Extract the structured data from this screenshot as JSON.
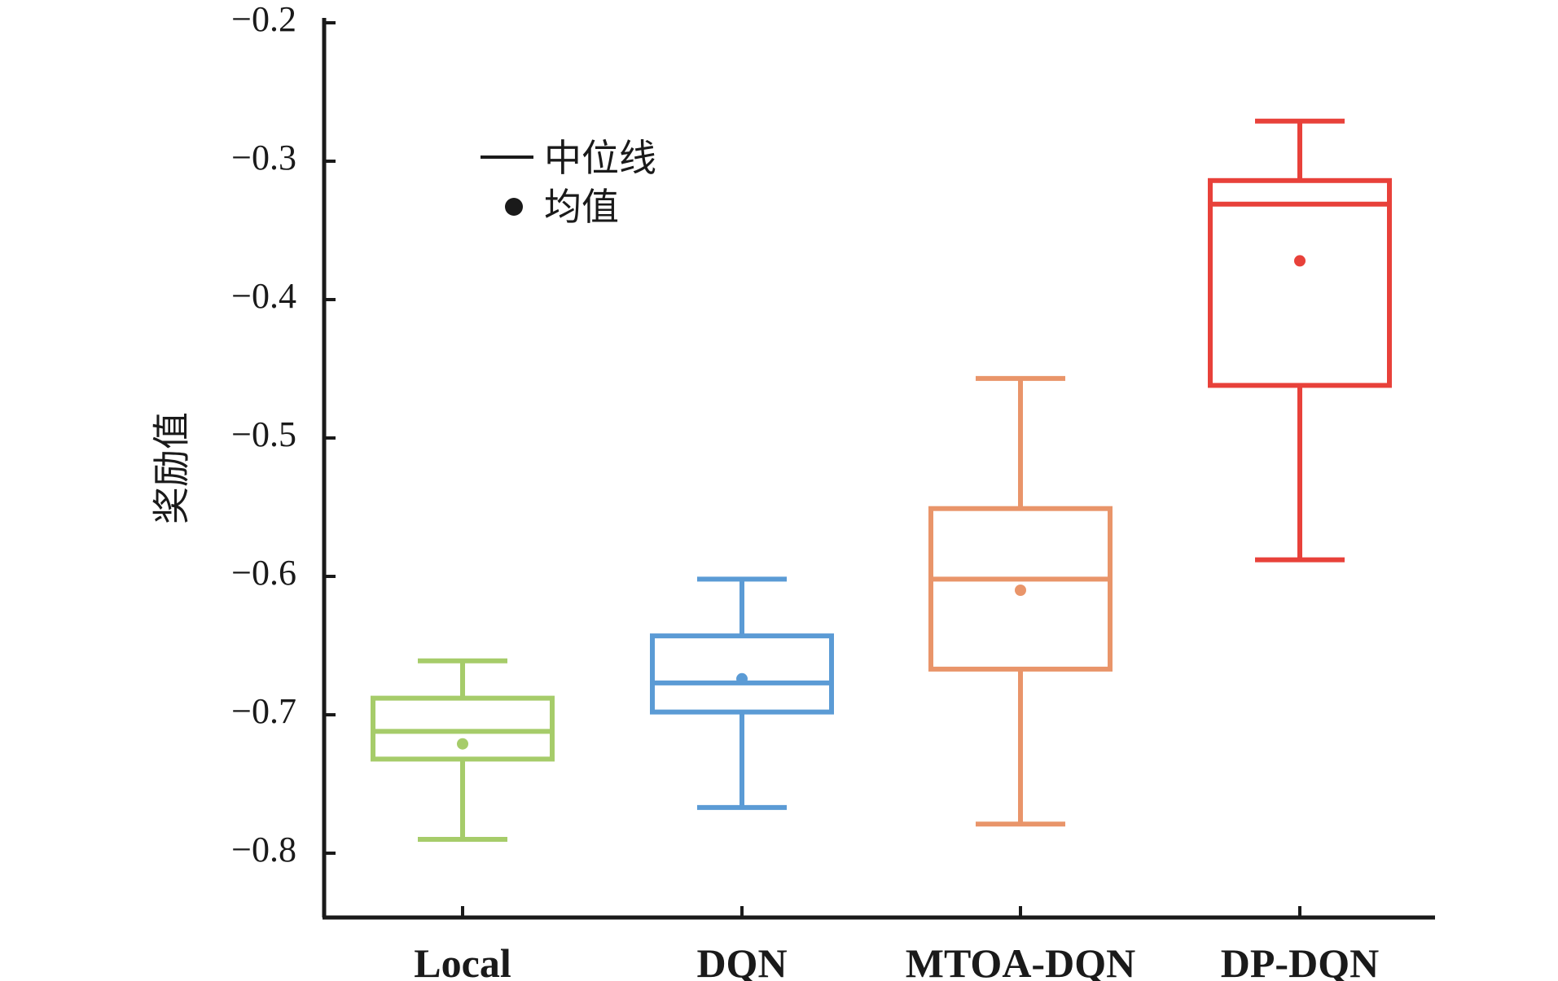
{
  "chart_data": {
    "type": "box",
    "title": "",
    "xlabel": "",
    "ylabel": "奖励值",
    "ylim": [
      -0.85,
      -0.2
    ],
    "yticks": [
      -0.2,
      -0.3,
      -0.4,
      -0.5,
      -0.6,
      -0.7,
      -0.8
    ],
    "ytick_labels": [
      "−0.2",
      "−0.3",
      "−0.4",
      "−0.5",
      "−0.6",
      "−0.7",
      "−0.8"
    ],
    "grid": false,
    "legend": {
      "placement": "top-left",
      "entries": [
        {
          "symbol": "line",
          "label": "中位线"
        },
        {
          "symbol": "dot",
          "label": "均值"
        }
      ]
    },
    "categories": [
      "Local",
      "DQN",
      "MTOA-DQN",
      "DP-DQN"
    ],
    "boxes": [
      {
        "category": "Local",
        "color": "#a6cc6a",
        "whisker_low": -0.79,
        "q1": -0.732,
        "median": -0.712,
        "q3": -0.688,
        "whisker_high": -0.661,
        "mean": -0.721
      },
      {
        "category": "DQN",
        "color": "#5b9bd5",
        "whisker_low": -0.767,
        "q1": -0.698,
        "median": -0.677,
        "q3": -0.643,
        "whisker_high": -0.602,
        "mean": -0.674
      },
      {
        "category": "MTOA-DQN",
        "color": "#e9956a",
        "whisker_low": -0.779,
        "q1": -0.667,
        "median": -0.602,
        "q3": -0.551,
        "whisker_high": -0.457,
        "mean": -0.61
      },
      {
        "category": "DP-DQN",
        "color": "#e8413a",
        "whisker_low": -0.588,
        "q1": -0.462,
        "median": -0.331,
        "q3": -0.314,
        "whisker_high": -0.271,
        "mean": -0.372
      }
    ]
  }
}
